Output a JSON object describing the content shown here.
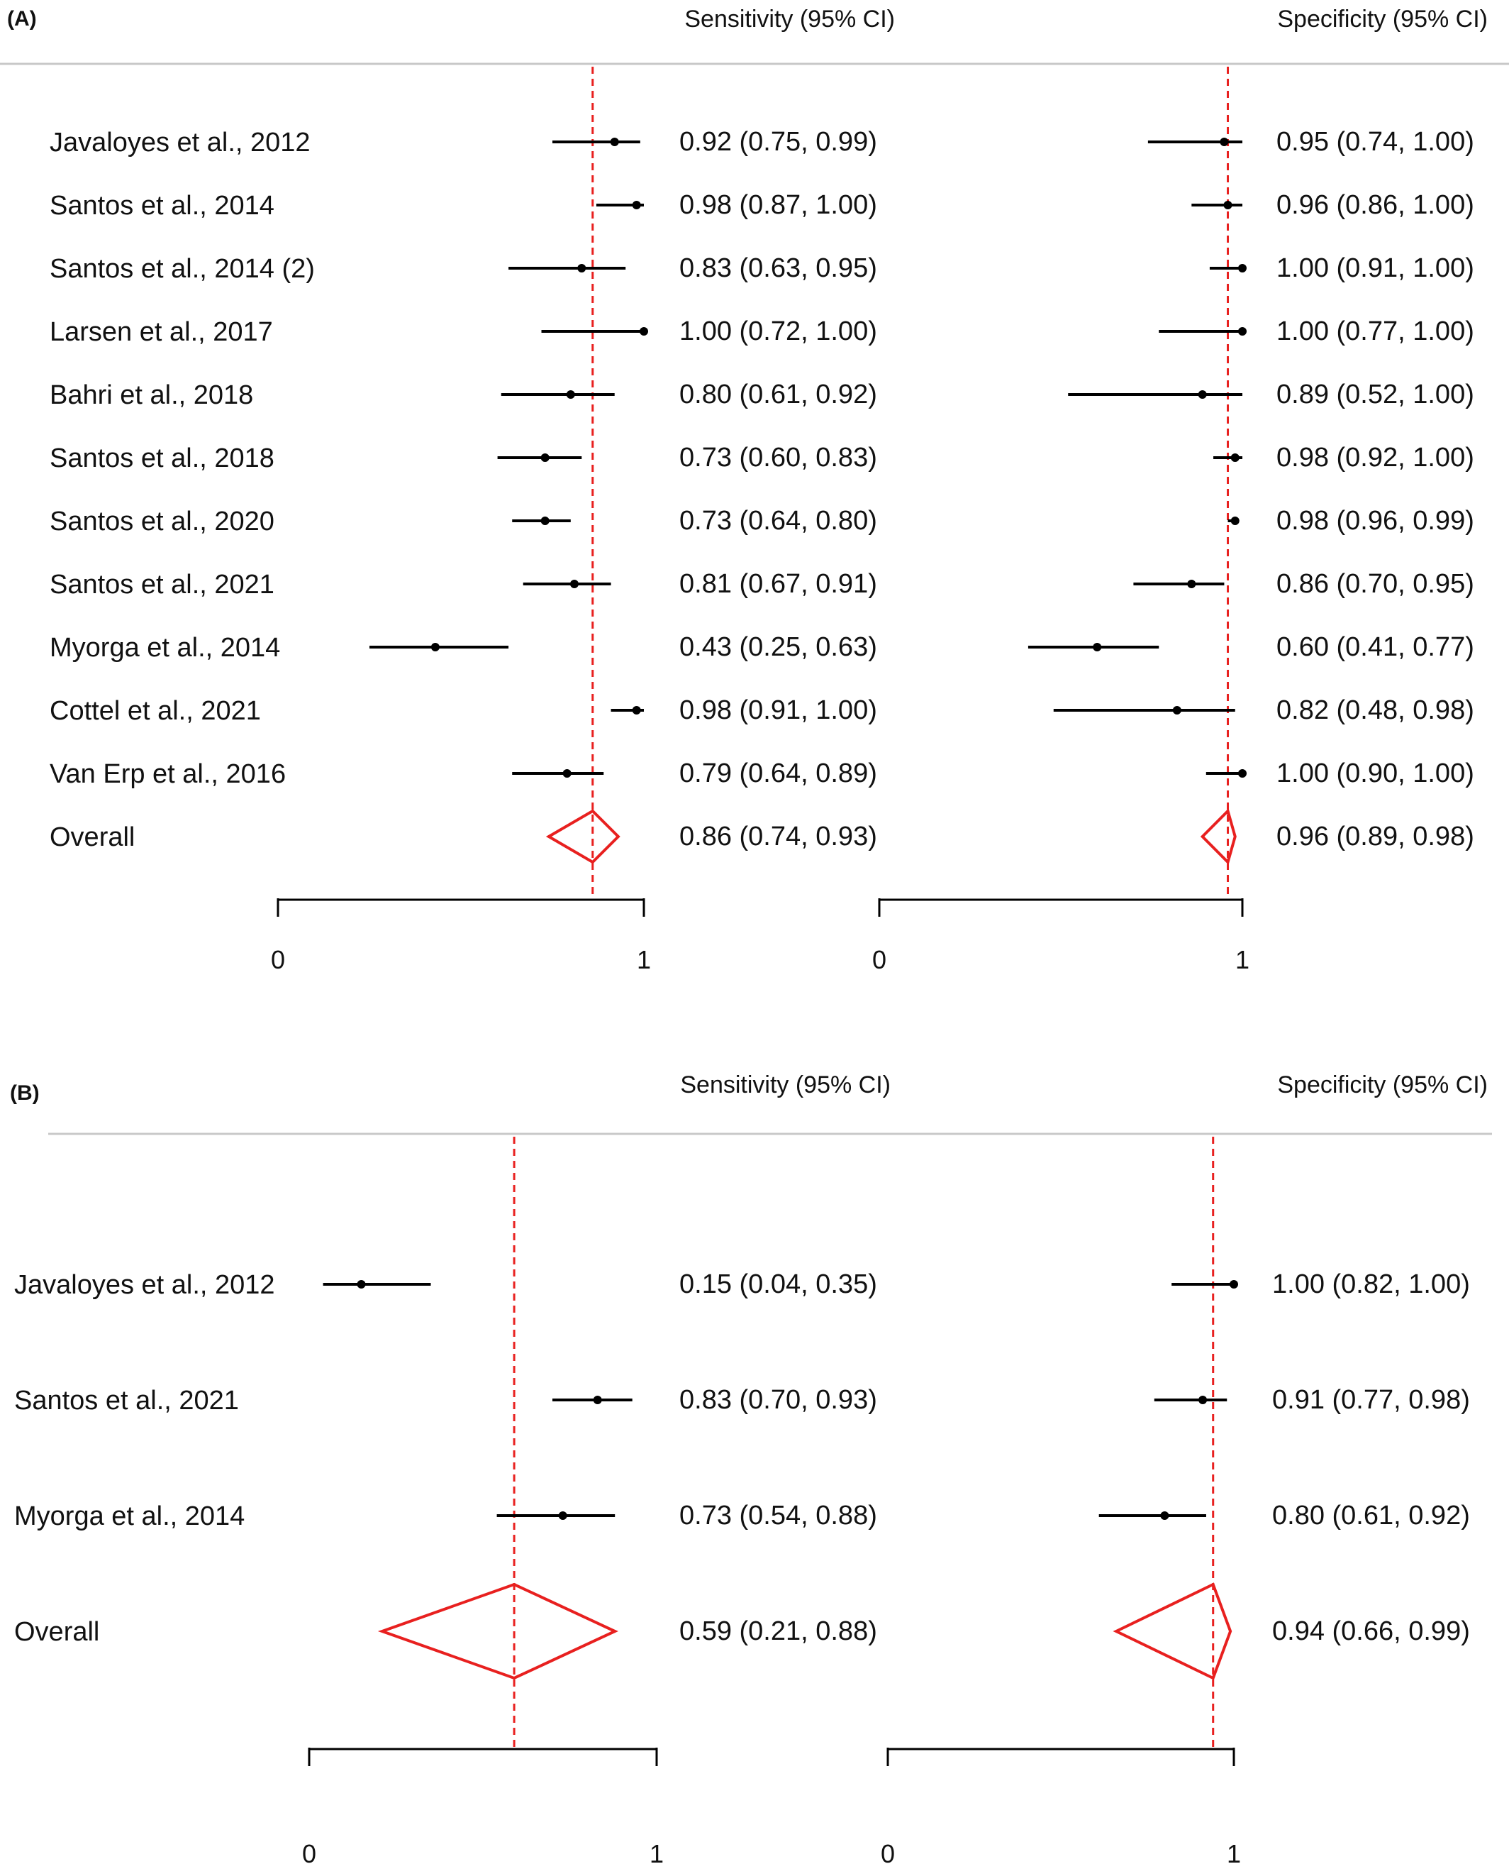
{
  "chart_data": [
    {
      "type": "forest",
      "panel": "(A)",
      "sensitivity_header": "Sensitivity (95% CI)",
      "specificity_header": "Specificity (95% CI)",
      "xlim": [
        0,
        1
      ],
      "tick_labels": [
        "0",
        "1"
      ],
      "studies": [
        {
          "label": "Javaloyes et al., 2012",
          "sens": [
            0.92,
            0.75,
            0.99
          ],
          "sens_text": "0.92 (0.75, 0.99)",
          "spec": [
            0.95,
            0.74,
            1.0
          ],
          "spec_text": "0.95 (0.74, 1.00)"
        },
        {
          "label": "Santos et al., 2014",
          "sens": [
            0.98,
            0.87,
            1.0
          ],
          "sens_text": "0.98 (0.87, 1.00)",
          "spec": [
            0.96,
            0.86,
            1.0
          ],
          "spec_text": "0.96 (0.86, 1.00)"
        },
        {
          "label": "Santos et al., 2014 (2)",
          "sens": [
            0.83,
            0.63,
            0.95
          ],
          "sens_text": "0.83 (0.63, 0.95)",
          "spec": [
            1.0,
            0.91,
            1.0
          ],
          "spec_text": "1.00 (0.91, 1.00)"
        },
        {
          "label": "Larsen et al., 2017",
          "sens": [
            1.0,
            0.72,
            1.0
          ],
          "sens_text": "1.00 (0.72, 1.00)",
          "spec": [
            1.0,
            0.77,
            1.0
          ],
          "spec_text": "1.00 (0.77, 1.00)"
        },
        {
          "label": "Bahri et al., 2018",
          "sens": [
            0.8,
            0.61,
            0.92
          ],
          "sens_text": "0.80 (0.61, 0.92)",
          "spec": [
            0.89,
            0.52,
            1.0
          ],
          "spec_text": "0.89 (0.52, 1.00)"
        },
        {
          "label": "Santos et al., 2018",
          "sens": [
            0.73,
            0.6,
            0.83
          ],
          "sens_text": "0.73 (0.60, 0.83)",
          "spec": [
            0.98,
            0.92,
            1.0
          ],
          "spec_text": "0.98 (0.92, 1.00)"
        },
        {
          "label": "Santos et al., 2020",
          "sens": [
            0.73,
            0.64,
            0.8
          ],
          "sens_text": "0.73 (0.64, 0.80)",
          "spec": [
            0.98,
            0.96,
            0.99
          ],
          "spec_text": "0.98 (0.96, 0.99)"
        },
        {
          "label": "Santos et al., 2021",
          "sens": [
            0.81,
            0.67,
            0.91
          ],
          "sens_text": "0.81 (0.67, 0.91)",
          "spec": [
            0.86,
            0.7,
            0.95
          ],
          "spec_text": "0.86 (0.70, 0.95)"
        },
        {
          "label": "Myorga et al., 2014",
          "sens": [
            0.43,
            0.25,
            0.63
          ],
          "sens_text": "0.43 (0.25, 0.63)",
          "spec": [
            0.6,
            0.41,
            0.77
          ],
          "spec_text": "0.60 (0.41, 0.77)"
        },
        {
          "label": "Cottel et al., 2021",
          "sens": [
            0.98,
            0.91,
            1.0
          ],
          "sens_text": "0.98 (0.91, 1.00)",
          "spec": [
            0.82,
            0.48,
            0.98
          ],
          "spec_text": "0.82 (0.48, 0.98)"
        },
        {
          "label": "Van Erp et al., 2016",
          "sens": [
            0.79,
            0.64,
            0.89
          ],
          "sens_text": "0.79 (0.64, 0.89)",
          "spec": [
            1.0,
            0.9,
            1.0
          ],
          "spec_text": "1.00 (0.90, 1.00)"
        }
      ],
      "overall": {
        "label": "Overall",
        "sens": [
          0.86,
          0.74,
          0.93
        ],
        "sens_text": "0.86 (0.74, 0.93)",
        "spec": [
          0.96,
          0.89,
          0.98
        ],
        "spec_text": "0.96 (0.89, 0.98)"
      }
    },
    {
      "type": "forest",
      "panel": "(B)",
      "sensitivity_header": "Sensitivity (95% CI)",
      "specificity_header": "Specificity (95% CI)",
      "xlim": [
        0,
        1
      ],
      "tick_labels": [
        "0",
        "1"
      ],
      "studies": [
        {
          "label": "Javaloyes et al., 2012",
          "sens": [
            0.15,
            0.04,
            0.35
          ],
          "sens_text": "0.15 (0.04, 0.35)",
          "spec": [
            1.0,
            0.82,
            1.0
          ],
          "spec_text": "1.00 (0.82, 1.00)"
        },
        {
          "label": "Santos et al., 2021",
          "sens": [
            0.83,
            0.7,
            0.93
          ],
          "sens_text": "0.83 (0.70, 0.93)",
          "spec": [
            0.91,
            0.77,
            0.98
          ],
          "spec_text": "0.91 (0.77, 0.98)"
        },
        {
          "label": "Myorga et al., 2014",
          "sens": [
            0.73,
            0.54,
            0.88
          ],
          "sens_text": "0.73 (0.54, 0.88)",
          "spec": [
            0.8,
            0.61,
            0.92
          ],
          "spec_text": "0.80 (0.61, 0.92)"
        }
      ],
      "overall": {
        "label": "Overall",
        "sens": [
          0.59,
          0.21,
          0.88
        ],
        "sens_text": "0.59 (0.21, 0.88)",
        "spec": [
          0.94,
          0.66,
          0.99
        ],
        "spec_text": "0.94 (0.66, 0.99)"
      }
    }
  ],
  "colors": {
    "summary": "#e8201f",
    "marks": "#000000",
    "separator": "#c8c8c8"
  }
}
